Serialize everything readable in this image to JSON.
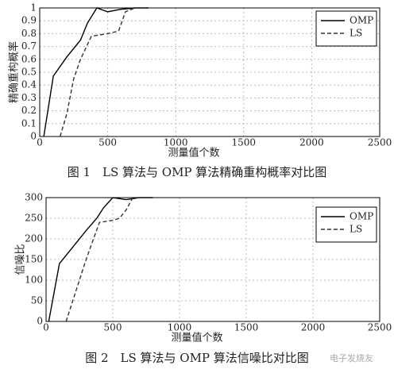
{
  "chart_data": [
    {
      "type": "line",
      "xlabel": "测量值个数",
      "ylabel": "精确重构概率",
      "caption": "图 1　LS 算法与 OMP 算法精确重构概率对比图",
      "xlim": [
        0,
        2500
      ],
      "xticks": [
        0,
        500,
        1000,
        1500,
        2000,
        2500
      ],
      "ylim": [
        0,
        1
      ],
      "yticks": [
        0,
        0.1,
        0.2,
        0.3,
        0.4,
        0.5,
        0.6,
        0.7,
        0.8,
        0.9,
        1
      ],
      "grid": true,
      "legend": "upper right",
      "series": [
        {
          "name": "OMP",
          "color": "#000000",
          "linestyle": "solid",
          "x": [
            30,
            100,
            200,
            300,
            350,
            420,
            500,
            600,
            700,
            800
          ],
          "values": [
            0,
            0.47,
            0.62,
            0.75,
            0.88,
            1,
            0.97,
            0.99,
            1,
            1
          ]
        },
        {
          "name": "LS",
          "color": "#333333",
          "linestyle": "dashed",
          "x": [
            150,
            200,
            250,
            300,
            380,
            500,
            580,
            630,
            700,
            800
          ],
          "values": [
            0,
            0.18,
            0.45,
            0.6,
            0.78,
            0.8,
            0.82,
            0.97,
            1,
            1
          ]
        }
      ]
    },
    {
      "type": "line",
      "xlabel": "测量值个数",
      "ylabel": "信噪比",
      "caption": "图 2　LS 算法与 OMP 算法信噪比对比图",
      "xlim": [
        0,
        2500
      ],
      "xticks": [
        0,
        500,
        1000,
        1500,
        2000,
        2500
      ],
      "ylim": [
        0,
        300
      ],
      "yticks": [
        0,
        50,
        100,
        150,
        200,
        250,
        300
      ],
      "grid": true,
      "legend": "upper right",
      "series": [
        {
          "name": "OMP",
          "color": "#000000",
          "linestyle": "solid",
          "x": [
            20,
            100,
            200,
            300,
            380,
            430,
            500,
            600,
            700,
            800
          ],
          "values": [
            0,
            140,
            180,
            220,
            250,
            275,
            300,
            295,
            300,
            300
          ]
        },
        {
          "name": "LS",
          "color": "#333333",
          "linestyle": "dashed",
          "x": [
            150,
            200,
            300,
            400,
            500,
            550,
            600,
            650,
            800
          ],
          "values": [
            0,
            50,
            150,
            240,
            245,
            250,
            270,
            300,
            300
          ]
        }
      ]
    }
  ],
  "watermark": "电子发烧友"
}
